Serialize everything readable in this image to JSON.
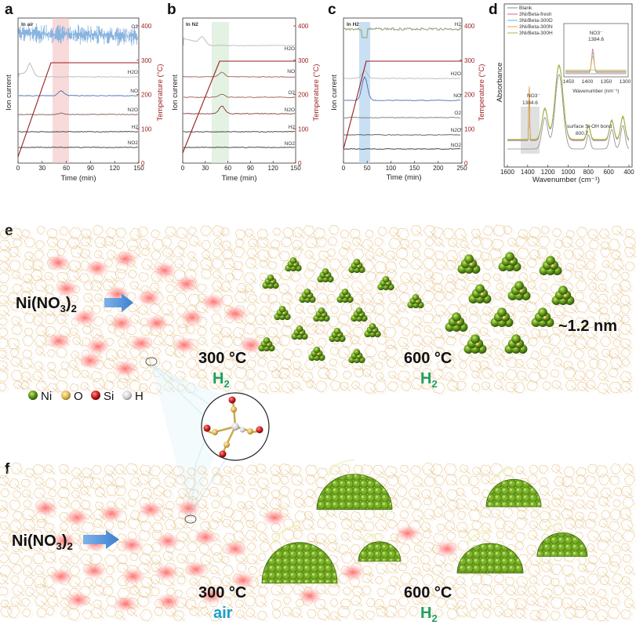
{
  "panels": {
    "a": {
      "letter": "a",
      "title": "In air",
      "xlabel": "Time (min)",
      "ylabel_left": "Ion current",
      "ylabel_right": "Temperature (°C)",
      "xticks": [
        "0",
        "30",
        "60",
        "90",
        "120",
        "150"
      ],
      "yticks_right": [
        "0",
        "100",
        "200",
        "300",
        "400"
      ],
      "traces": [
        "O2",
        "H2O",
        "NO",
        "N2O",
        "H2",
        "NO2"
      ]
    },
    "b": {
      "letter": "b",
      "title": "In N2",
      "xlabel": "Time (min)",
      "ylabel_left": "Ion current",
      "ylabel_right": "Temperature (°C)",
      "xticks": [
        "0",
        "30",
        "60",
        "90",
        "120",
        "150"
      ],
      "yticks_right": [
        "0",
        "100",
        "200",
        "300",
        "400"
      ],
      "traces": [
        "H2O",
        "NO",
        "O2",
        "N2O",
        "H2",
        "NO2"
      ]
    },
    "c": {
      "letter": "c",
      "title": "In H2",
      "xlabel": "Time (min)",
      "ylabel_left": "Ion current",
      "ylabel_right": "Temperature (°C)",
      "xticks": [
        "0",
        "50",
        "100",
        "150",
        "200",
        "250"
      ],
      "yticks_right": [
        "0",
        "100",
        "200",
        "300",
        "400"
      ],
      "traces": [
        "H2",
        "H2O",
        "NO",
        "O2",
        "N2O",
        "NO2"
      ]
    },
    "d": {
      "letter": "d",
      "xlabel": "Wavenumber (cm⁻¹)",
      "ylabel": "Absorbance",
      "xticks": [
        "1600",
        "1400",
        "1200",
        "1000",
        "800",
        "600",
        "400"
      ],
      "legend": [
        "Blank",
        "3Ni/Beta-fresh",
        "3Ni/Beta-300D",
        "3Ni/Beta-300N",
        "3Ni/Beta-300H"
      ],
      "legend_colors": [
        "#8a8a8a",
        "#e06666",
        "#5bb3e6",
        "#f0a030",
        "#98c040"
      ],
      "annot_nitrate": "NO3⁻",
      "annot_nitrate_value": "1384.6",
      "annot_siohl": "surface Si-OH bond",
      "annot_siohv": "800.7",
      "inset_xlabel": "Wavenumber (nm⁻¹)",
      "inset_xticks": [
        "1450",
        "1400",
        "1350",
        "1300"
      ],
      "inset_title": "NO3⁻",
      "inset_value": "1384.6"
    }
  },
  "scheme_e": {
    "letter": "e",
    "precursor": "Ni(NO3)2",
    "t1": "300 °C",
    "gas1": "H2",
    "t2": "600 °C",
    "gas2": "H2",
    "size": "~1.2 nm"
  },
  "scheme_f": {
    "letter": "f",
    "precursor": "Ni(NO3)2",
    "t1": "300 °C",
    "gas1": "air",
    "t2": "600 °C",
    "gas2": "H2"
  },
  "legend_atoms": [
    {
      "label": "Ni",
      "color": "#5a8a18"
    },
    {
      "label": "O",
      "color": "#e8c060"
    },
    {
      "label": "Si",
      "color": "#cc1a1a"
    },
    {
      "label": "H",
      "color": "#d8d8d8"
    }
  ],
  "colors": {
    "temp": "#9b1b1b",
    "air_band": "#f3c2c2",
    "n2_band": "#d8ecd8",
    "h2_band": "#bcd7f0",
    "o2_noise": "#8ab4e0",
    "green_text": "#1ea060",
    "cyan_text": "#1aa0d0"
  }
}
